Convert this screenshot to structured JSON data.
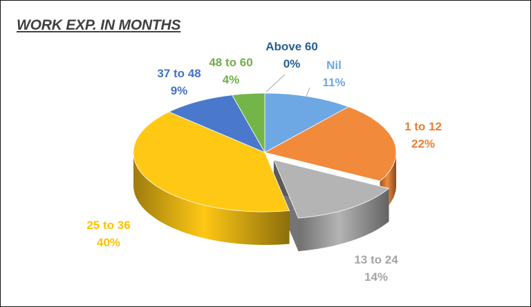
{
  "chart_data": {
    "type": "pie",
    "title": "WORK EXP. IN MONTHS",
    "categories": [
      "Nil",
      "1 to 12",
      "13 to 24",
      "25 to 36",
      "37 to 48",
      "48 to 60",
      "Above 60"
    ],
    "values": [
      11,
      22,
      14,
      40,
      9,
      4,
      0
    ],
    "value_labels": [
      "11%",
      "22%",
      "14%",
      "40%",
      "9%",
      "4%",
      "0%"
    ],
    "colors": [
      "#6ea8e4",
      "#f28a3c",
      "#b4b4b4",
      "#ffc815",
      "#4a78cc",
      "#74b54a",
      "#2a5f92"
    ],
    "label_colors": [
      "#6ea8e4",
      "#ee7d31",
      "#a5a5a5",
      "#ffc000",
      "#4472c4",
      "#70ad47",
      "#255e91"
    ],
    "exploded": [
      "13 to 24"
    ],
    "style": "3d",
    "legend": "none"
  }
}
